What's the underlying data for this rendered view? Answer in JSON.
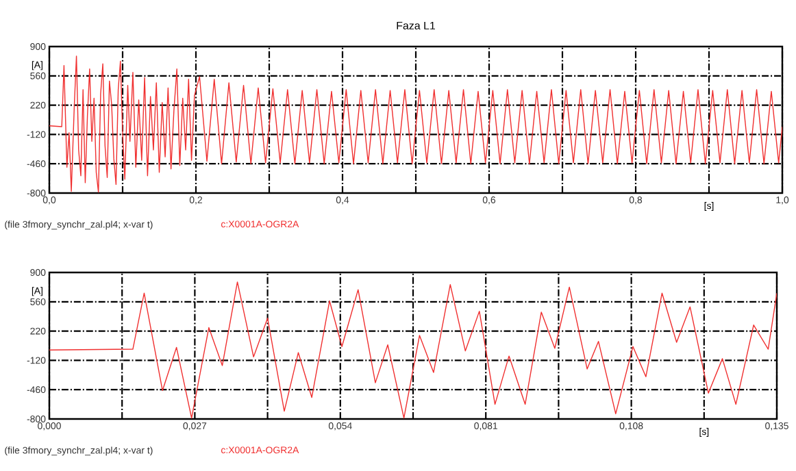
{
  "chart_data": [
    {
      "type": "line",
      "title": "Faza L1",
      "xlabel": "[s]",
      "ylabel": "[A]",
      "annotations": [
        "(file 3fmory_synchr_zal.pl4; x-var t)"
      ],
      "xlim": [
        0,
        1.0
      ],
      "ylim": [
        -800,
        900
      ],
      "xticks": [
        {
          "value": 0,
          "label": "0,0"
        },
        {
          "value": 0.1,
          "label": null
        },
        {
          "value": 0.2,
          "label": "0,2"
        },
        {
          "value": 0.3,
          "label": null
        },
        {
          "value": 0.4,
          "label": "0,4"
        },
        {
          "value": 0.5,
          "label": null
        },
        {
          "value": 0.6,
          "label": "0,6"
        },
        {
          "value": 0.7,
          "label": null
        },
        {
          "value": 0.8,
          "label": "0,8"
        },
        {
          "value": 0.9,
          "label": null
        },
        {
          "value": 1.0,
          "label": "1,0"
        }
      ],
      "yticks": [
        900,
        560,
        220,
        -120,
        -460,
        -800
      ],
      "grid": true,
      "series": [
        {
          "name": "c:X0001A-OGR2A",
          "color": "#f03030",
          "x": [
            0,
            0.017,
            0.02,
            0.024,
            0.027,
            0.03,
            0.034,
            0.037,
            0.04,
            0.043,
            0.046,
            0.049,
            0.052,
            0.055,
            0.058,
            0.061,
            0.064,
            0.067,
            0.07,
            0.073,
            0.076,
            0.079,
            0.082,
            0.085,
            0.088,
            0.091,
            0.094,
            0.097,
            0.1,
            0.103,
            0.107,
            0.11,
            0.114,
            0.118,
            0.122,
            0.126,
            0.13,
            0.134,
            0.138,
            0.142,
            0.146,
            0.15,
            0.154,
            0.158,
            0.162,
            0.166,
            0.17,
            0.174,
            0.178,
            0.182,
            0.186,
            0.19,
            0.194,
            0.198,
            0.205,
            0.215,
            0.225,
            0.235,
            0.245,
            0.255,
            0.265,
            0.275,
            0.285,
            0.295,
            0.305,
            0.315,
            0.325,
            0.335,
            0.345,
            0.355,
            0.365,
            0.375,
            0.385,
            0.395,
            0.405,
            0.415,
            0.425,
            0.435,
            0.445,
            0.455,
            0.465,
            0.475,
            0.485,
            0.495,
            0.505,
            0.515,
            0.525,
            0.535,
            0.545,
            0.555,
            0.565,
            0.575,
            0.585,
            0.595,
            0.605,
            0.615,
            0.625,
            0.635,
            0.645,
            0.655,
            0.665,
            0.675,
            0.685,
            0.695,
            0.705,
            0.715,
            0.725,
            0.735,
            0.745,
            0.755,
            0.765,
            0.775,
            0.785,
            0.795,
            0.805,
            0.815,
            0.825,
            0.835,
            0.845,
            0.855,
            0.865,
            0.875,
            0.885,
            0.895,
            0.905,
            0.915,
            0.925,
            0.935,
            0.945,
            0.955,
            0.965,
            0.975,
            0.985,
            0.995,
            1.0
          ],
          "values": [
            -20,
            -30,
            680,
            -500,
            -100,
            -780,
            200,
            790,
            -300,
            -600,
            400,
            -680,
            100,
            640,
            -200,
            300,
            -560,
            -790,
            350,
            700,
            -250,
            -620,
            500,
            230,
            -400,
            -700,
            400,
            730,
            -100,
            -640,
            450,
            -200,
            600,
            -500,
            280,
            -420,
            540,
            -600,
            320,
            -300,
            480,
            -560,
            250,
            -380,
            420,
            -520,
            160,
            640,
            -480,
            300,
            -300,
            520,
            -420,
            330,
            550,
            -430,
            520,
            -460,
            480,
            -440,
            450,
            -460,
            420,
            -450,
            410,
            -450,
            400,
            -460,
            390,
            -450,
            400,
            -460,
            380,
            -450,
            400,
            -460,
            390,
            -450,
            400,
            -460,
            390,
            -450,
            400,
            -460,
            390,
            -450,
            400,
            -460,
            390,
            -450,
            400,
            -460,
            380,
            -450,
            390,
            -460,
            400,
            -450,
            390,
            -460,
            380,
            -450,
            400,
            -460,
            390,
            -450,
            400,
            -460,
            390,
            -450,
            400,
            -460,
            380,
            -450,
            390,
            -460,
            400,
            -450,
            390,
            -460,
            380,
            -450,
            400,
            -460,
            390,
            -450,
            400,
            -460,
            390,
            -450,
            400,
            -460,
            380,
            -450,
            -30
          ]
        }
      ]
    },
    {
      "type": "line",
      "xlabel": "[s]",
      "ylabel": "[A]",
      "annotations": [
        "(file 3fmory_synchr_zal.pl4; x-var t)"
      ],
      "xlim": [
        0,
        0.135
      ],
      "ylim": [
        -800,
        900
      ],
      "xticks": [
        {
          "value": 0,
          "label": "0,000"
        },
        {
          "value": 0.0135,
          "label": null
        },
        {
          "value": 0.027,
          "label": "0,027"
        },
        {
          "value": 0.0405,
          "label": null
        },
        {
          "value": 0.054,
          "label": "0,054"
        },
        {
          "value": 0.0675,
          "label": null
        },
        {
          "value": 0.081,
          "label": "0,081"
        },
        {
          "value": 0.0945,
          "label": null
        },
        {
          "value": 0.108,
          "label": "0,108"
        },
        {
          "value": 0.1215,
          "label": null
        },
        {
          "value": 0.135,
          "label": "0,135"
        }
      ],
      "yticks": [
        900,
        560,
        220,
        -120,
        -460,
        -800
      ],
      "grid": true,
      "series": [
        {
          "name": "c:X0001A-OGR2A",
          "color": "#f03030",
          "x": [
            0,
            0.0155,
            0.0176,
            0.021,
            0.0236,
            0.0264,
            0.0296,
            0.0321,
            0.0349,
            0.0379,
            0.0405,
            0.0436,
            0.0462,
            0.0487,
            0.052,
            0.0543,
            0.0573,
            0.0605,
            0.0628,
            0.0658,
            0.0687,
            0.0713,
            0.0744,
            0.0772,
            0.0798,
            0.0827,
            0.0853,
            0.0883,
            0.0913,
            0.0938,
            0.0965,
            0.0998,
            0.1019,
            0.1051,
            0.1083,
            0.1107,
            0.1137,
            0.1164,
            0.1189,
            0.1223,
            0.1249,
            0.1274,
            0.1307,
            0.1334,
            0.135
          ],
          "values": [
            0,
            10,
            660,
            -470,
            30,
            -790,
            260,
            -180,
            790,
            -80,
            370,
            -710,
            -30,
            -550,
            570,
            40,
            700,
            -380,
            60,
            -790,
            170,
            -260,
            760,
            -10,
            450,
            -630,
            -70,
            -630,
            440,
            20,
            730,
            -220,
            100,
            -740,
            40,
            -310,
            660,
            90,
            500,
            -500,
            -100,
            -630,
            290,
            10,
            660
          ]
        }
      ]
    }
  ]
}
